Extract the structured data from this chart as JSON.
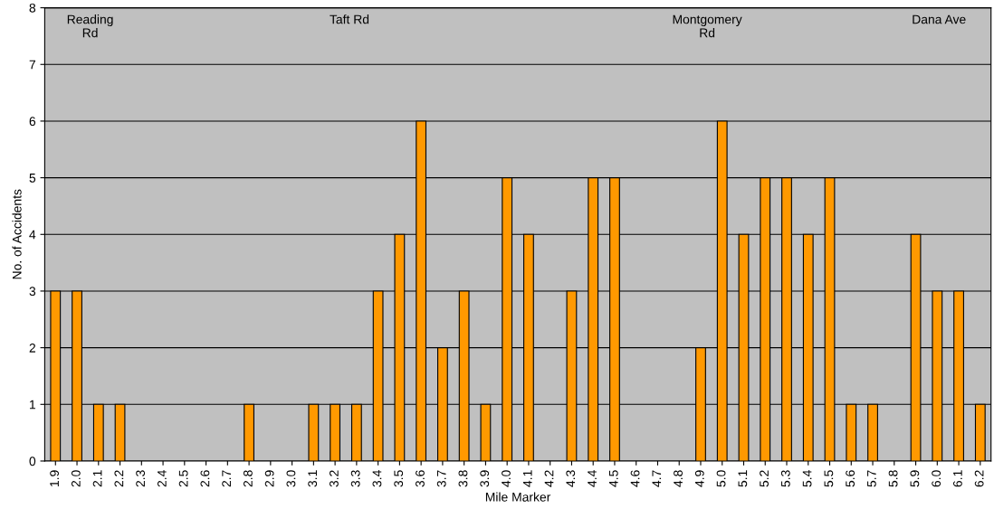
{
  "chart_data": {
    "type": "bar",
    "xlabel": "Mile Marker",
    "ylabel": "No. of Accidents",
    "categories": [
      "1.9",
      "2.0",
      "2.1",
      "2.2",
      "2.3",
      "2.4",
      "2.5",
      "2.6",
      "2.7",
      "2.8",
      "2.9",
      "3.0",
      "3.1",
      "3.2",
      "3.3",
      "3.4",
      "3.5",
      "3.6",
      "3.7",
      "3.8",
      "3.9",
      "4.0",
      "4.1",
      "4.2",
      "4.3",
      "4.4",
      "4.5",
      "4.6",
      "4.7",
      "4.8",
      "4.9",
      "5.0",
      "5.1",
      "5.2",
      "5.3",
      "5.4",
      "5.5",
      "5.6",
      "5.7",
      "5.8",
      "5.9",
      "6.0",
      "6.1",
      "6.2"
    ],
    "values": [
      3,
      3,
      1,
      1,
      0,
      0,
      0,
      0,
      0,
      1,
      0,
      0,
      1,
      1,
      1,
      3,
      4,
      6,
      2,
      3,
      1,
      5,
      4,
      0,
      3,
      5,
      5,
      0,
      0,
      0,
      2,
      6,
      4,
      5,
      5,
      4,
      5,
      1,
      1,
      0,
      4,
      3,
      3,
      1
    ],
    "color": "#ff9900",
    "ylim": [
      0,
      8
    ],
    "yticks": [
      0,
      1,
      2,
      3,
      4,
      5,
      6,
      7,
      8
    ],
    "grid": "y",
    "annotations": [
      "Reading\nRd",
      "Taft Rd",
      "Montgomery\nRd",
      "Dana Ave"
    ]
  }
}
